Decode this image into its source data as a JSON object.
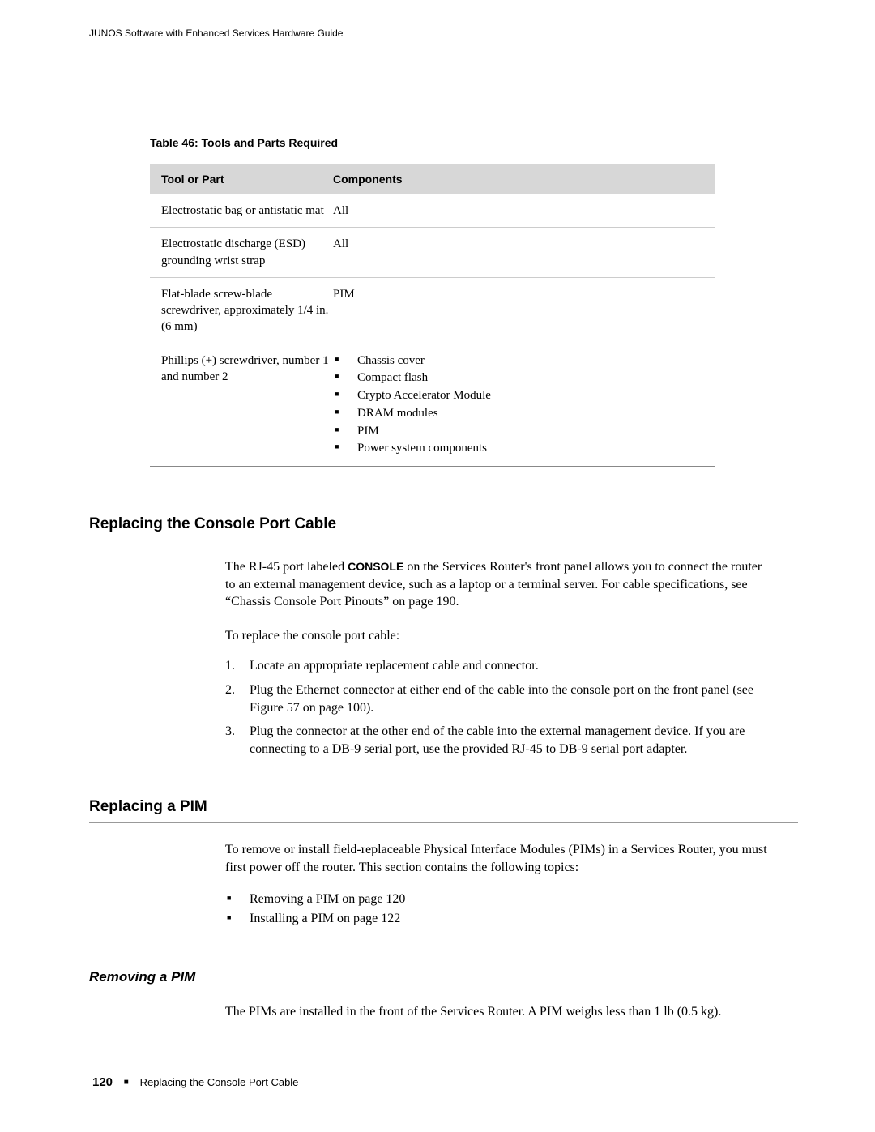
{
  "header": "JUNOS Software with Enhanced Services Hardware Guide",
  "table": {
    "caption": "Table 46: Tools and Parts Required",
    "columns": [
      "Tool or Part",
      "Components"
    ],
    "rows": [
      {
        "tool": "Electrostatic bag or antistatic mat",
        "components_text": "All",
        "components_list": null
      },
      {
        "tool": "Electrostatic discharge (ESD) grounding wrist strap",
        "components_text": "All",
        "components_list": null
      },
      {
        "tool": "Flat-blade screw-blade screwdriver, approximately 1/4 in. (6 mm)",
        "components_text": "PIM",
        "components_list": null
      },
      {
        "tool": "Phillips (+) screwdriver, number 1 and number 2",
        "components_text": null,
        "components_list": [
          "Chassis cover",
          "Compact flash",
          "Crypto Accelerator Module",
          "DRAM modules",
          "PIM",
          "Power system components"
        ]
      }
    ]
  },
  "section1": {
    "heading": "Replacing the Console Port Cable",
    "intro_pre": "The RJ-45 port labeled ",
    "intro_bold": "CONSOLE",
    "intro_post": " on the Services Router's front panel allows you to connect the router to an external management device, such as a laptop or a terminal server. For cable specifications, see “Chassis Console Port Pinouts” on page 190.",
    "lead": "To replace the console port cable:",
    "steps": [
      "Locate an appropriate replacement cable and connector.",
      "Plug the Ethernet connector at either end of the cable into the console port on the front panel (see Figure 57 on page 100).",
      "Plug the connector at the other end of the cable into the external management device. If you are connecting to a DB-9 serial port, use the provided RJ-45 to DB-9 serial port adapter."
    ]
  },
  "section2": {
    "heading": "Replacing a PIM",
    "intro": "To remove or install field-replaceable Physical Interface Modules (PIMs) in a Services Router, you must first power off the router. This section contains the following topics:",
    "items": [
      "Removing a PIM on page 120",
      "Installing a PIM on page 122"
    ]
  },
  "section3": {
    "heading": "Removing a PIM",
    "para": "The PIMs are installed in the front of the Services Router. A PIM weighs less than 1 lb (0.5 kg)."
  },
  "footer": {
    "page": "120",
    "text": "Replacing the Console Port Cable"
  }
}
